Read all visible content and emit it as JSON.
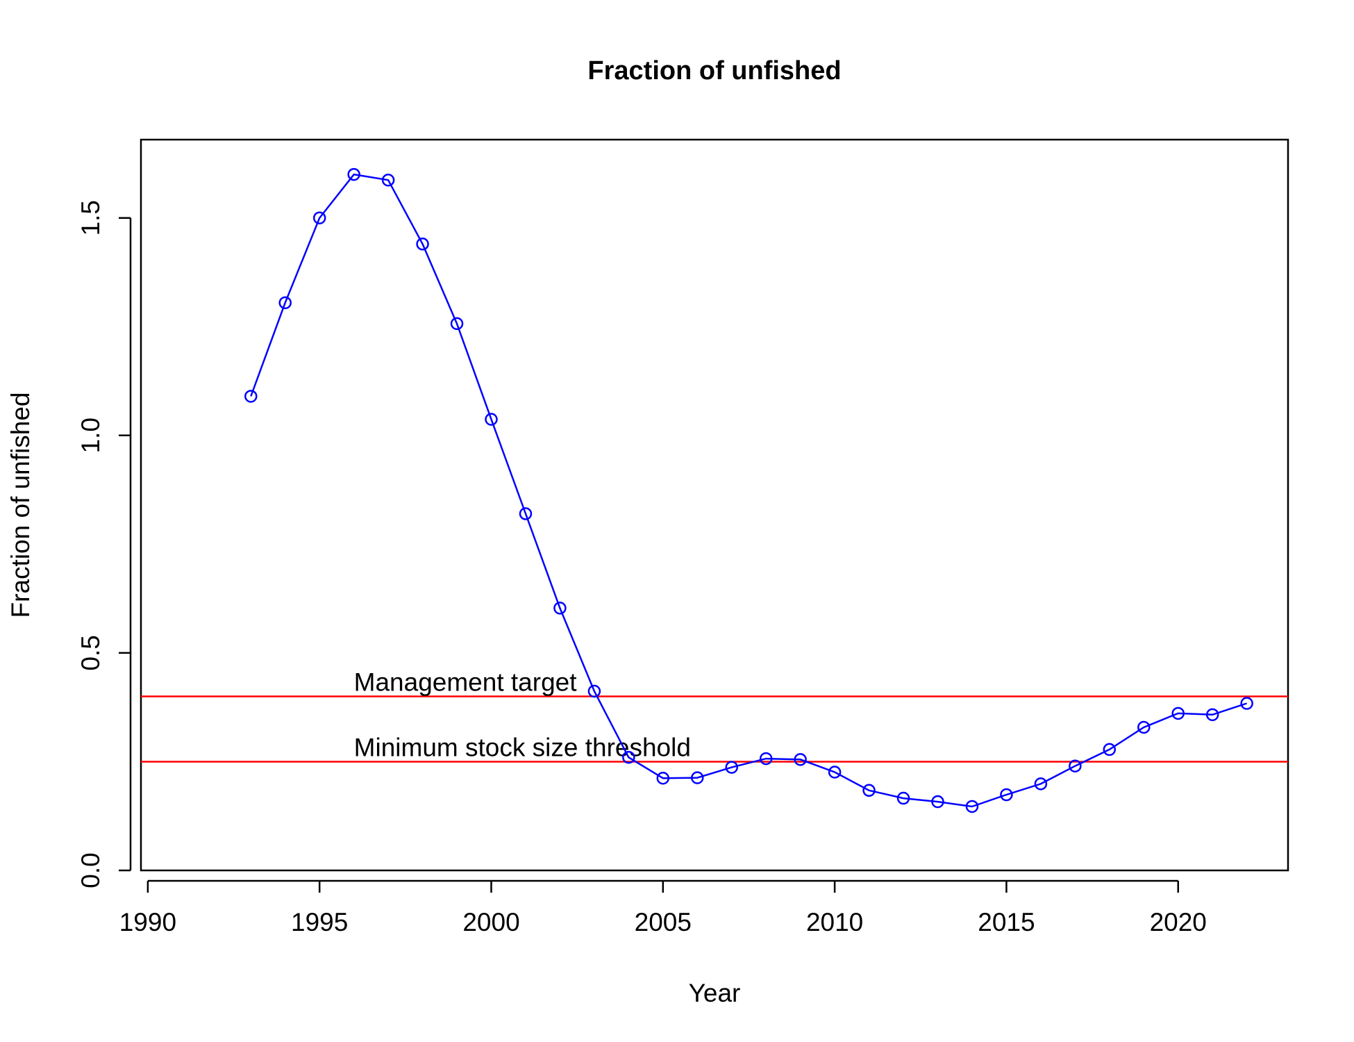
{
  "chart_data": {
    "type": "line",
    "title": "Fraction of unfished",
    "xlabel": "Year",
    "ylabel": "Fraction of unfished",
    "xlim": [
      1989.8,
      2023.2
    ],
    "ylim": [
      0.0,
      1.68
    ],
    "grid": false,
    "x_ticks": [
      1990,
      1995,
      2000,
      2005,
      2010,
      2015,
      2020
    ],
    "x_tick_labels": [
      "1990",
      "1995",
      "2000",
      "2005",
      "2010",
      "2015",
      "2020"
    ],
    "y_ticks": [
      0.0,
      0.5,
      1.0,
      1.5
    ],
    "y_tick_labels": [
      "0.0",
      "0.5",
      "1.0",
      "1.5"
    ],
    "series": [
      {
        "color": "#0000FF",
        "marker": "open-circle",
        "x": [
          1993,
          1994,
          1995,
          1996,
          1997,
          1998,
          1999,
          2000,
          2001,
          2002,
          2003,
          2004,
          2005,
          2006,
          2007,
          2008,
          2009,
          2010,
          2011,
          2012,
          2013,
          2014,
          2015,
          2016,
          2017,
          2018,
          2019,
          2020,
          2021,
          2022
        ],
        "y": [
          1.09,
          1.305,
          1.5,
          1.6,
          1.587,
          1.44,
          1.257,
          1.037,
          0.82,
          0.603,
          0.412,
          0.26,
          0.212,
          0.213,
          0.237,
          0.257,
          0.255,
          0.226,
          0.184,
          0.166,
          0.158,
          0.147,
          0.174,
          0.199,
          0.24,
          0.278,
          0.329,
          0.361,
          0.358,
          0.384
        ]
      }
    ],
    "reference_lines": [
      {
        "label": "Management target",
        "y": 0.4,
        "color": "#FF0000"
      },
      {
        "label": "Minimum stock size threshold",
        "y": 0.25,
        "color": "#FF0000"
      }
    ]
  }
}
